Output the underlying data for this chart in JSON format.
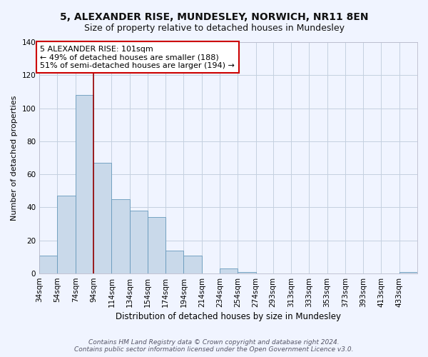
{
  "title": "5, ALEXANDER RISE, MUNDESLEY, NORWICH, NR11 8EN",
  "subtitle": "Size of property relative to detached houses in Mundesley",
  "xlabel": "Distribution of detached houses by size in Mundesley",
  "ylabel": "Number of detached properties",
  "bar_labels": [
    "34sqm",
    "54sqm",
    "74sqm",
    "94sqm",
    "114sqm",
    "134sqm",
    "154sqm",
    "174sqm",
    "194sqm",
    "214sqm",
    "234sqm",
    "254sqm",
    "274sqm",
    "293sqm",
    "313sqm",
    "333sqm",
    "353sqm",
    "373sqm",
    "393sqm",
    "413sqm",
    "433sqm"
  ],
  "bar_values": [
    11,
    47,
    108,
    67,
    45,
    38,
    34,
    14,
    11,
    0,
    3,
    1,
    0,
    0,
    0,
    0,
    0,
    0,
    0,
    0,
    1
  ],
  "bar_color": "#c9d9ea",
  "bar_edgecolor": "#6699bb",
  "ylim": [
    0,
    140
  ],
  "yticks": [
    0,
    20,
    40,
    60,
    80,
    100,
    120,
    140
  ],
  "vline_x": 94,
  "vline_color": "#990000",
  "annotation_text": "5 ALEXANDER RISE: 101sqm\n← 49% of detached houses are smaller (188)\n51% of semi-detached houses are larger (194) →",
  "annotation_box_edgecolor": "#cc0000",
  "annotation_box_facecolor": "#ffffff",
  "footer1": "Contains HM Land Registry data © Crown copyright and database right 2024.",
  "footer2": "Contains public sector information licensed under the Open Government Licence v3.0.",
  "background_color": "#f0f4ff",
  "grid_color": "#c4d0e0",
  "title_fontsize": 10,
  "subtitle_fontsize": 9,
  "xlabel_fontsize": 8.5,
  "ylabel_fontsize": 8,
  "tick_fontsize": 7.5,
  "annotation_fontsize": 8,
  "footer_fontsize": 6.5
}
